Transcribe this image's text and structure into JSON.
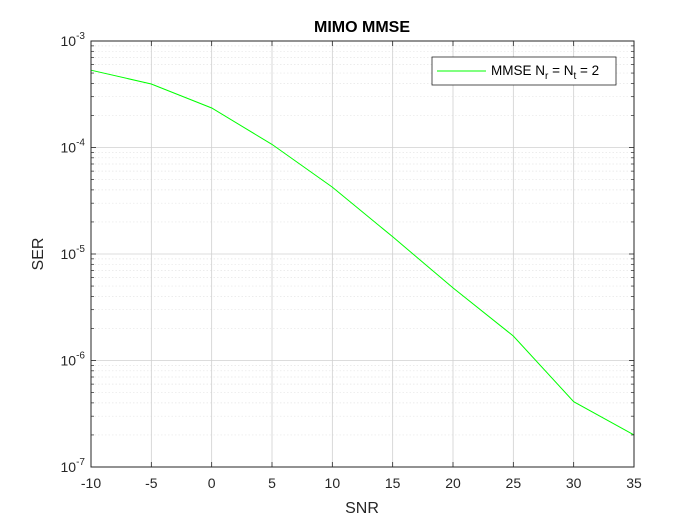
{
  "chart_data": {
    "type": "line",
    "title": "MIMO MMSE",
    "xlabel": "SNR",
    "ylabel": "SER",
    "xlim": [
      -10,
      35
    ],
    "ylim": [
      1e-07,
      0.001
    ],
    "yscale": "log",
    "grid": true,
    "minor_grid": true,
    "legend_location": "top-right",
    "x_ticks": [
      -10,
      -5,
      0,
      5,
      10,
      15,
      20,
      25,
      30,
      35
    ],
    "x_tick_labels": [
      "-10",
      "-5",
      "0",
      "5",
      "10",
      "15",
      "20",
      "25",
      "30",
      "35"
    ],
    "y_ticks": [
      {
        "base": "10",
        "exp": "-7"
      },
      {
        "base": "10",
        "exp": "-6"
      },
      {
        "base": "10",
        "exp": "-5"
      },
      {
        "base": "10",
        "exp": "-4"
      },
      {
        "base": "10",
        "exp": "-3"
      }
    ],
    "series": [
      {
        "legend_main": "MMSE N",
        "legend_sub1": "r",
        "legend_mid": " = N",
        "legend_sub2": "t",
        "legend_end": " = 2",
        "color": "#00ff00",
        "x": [
          -10,
          -5,
          0,
          5,
          10,
          15,
          20,
          25,
          30,
          35
        ],
        "y": [
          0.000532,
          0.000395,
          0.000235,
          0.000107,
          4.25e-05,
          1.45e-05,
          4.8e-06,
          1.7e-06,
          4.1e-07,
          2e-07
        ]
      }
    ]
  }
}
